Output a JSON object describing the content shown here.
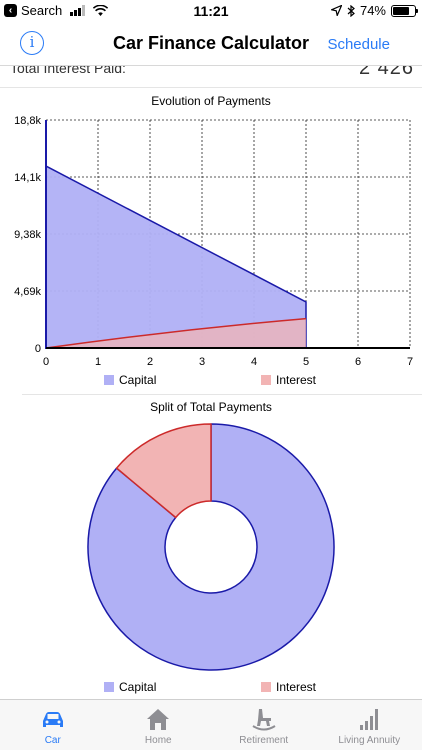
{
  "status_bar": {
    "back_label": "Search",
    "time": "11:21",
    "battery": "74%",
    "battery_level": 0.74
  },
  "nav": {
    "title": "Car Finance Calculator",
    "info_icon": "info-icon",
    "schedule_label": "Schedule"
  },
  "summary": {
    "label": "Total Interest Paid:",
    "value": "2 426"
  },
  "colors": {
    "capital_fill": "#b0b0f5",
    "capital_stroke": "#1a1aa8",
    "interest_fill": "#f2b4b4",
    "interest_stroke": "#cc2a2a",
    "accent": "#2a7bf6"
  },
  "chart_data": [
    {
      "type": "area",
      "title": "Evolution of Payments",
      "x": [
        0,
        5
      ],
      "xlim": [
        0,
        7
      ],
      "xticks": [
        "0",
        "1",
        "2",
        "3",
        "4",
        "5",
        "6",
        "7"
      ],
      "ylim": [
        0,
        18800
      ],
      "yticks": [
        "0",
        "4,69k",
        "9,38k",
        "14,1k",
        "18,8k"
      ],
      "series": [
        {
          "name": "Capital",
          "values": [
            15000,
            3800
          ]
        },
        {
          "name": "Interest",
          "values": [
            0,
            2426
          ]
        }
      ],
      "legend_placement": "bottom",
      "grid": true
    },
    {
      "type": "pie",
      "title": "Split of Total Payments",
      "series": [
        {
          "name": "Capital",
          "value": 15000
        },
        {
          "name": "Interest",
          "value": 2426
        }
      ],
      "donut": true,
      "legend_placement": "bottom"
    }
  ],
  "tabs": [
    {
      "label": "Car",
      "icon": "car-icon",
      "active": true
    },
    {
      "label": "Home",
      "icon": "home-icon",
      "active": false
    },
    {
      "label": "Retirement",
      "icon": "rocking-chair-icon",
      "active": false
    },
    {
      "label": "Living Annuity",
      "icon": "bar-chart-icon",
      "active": false
    }
  ]
}
